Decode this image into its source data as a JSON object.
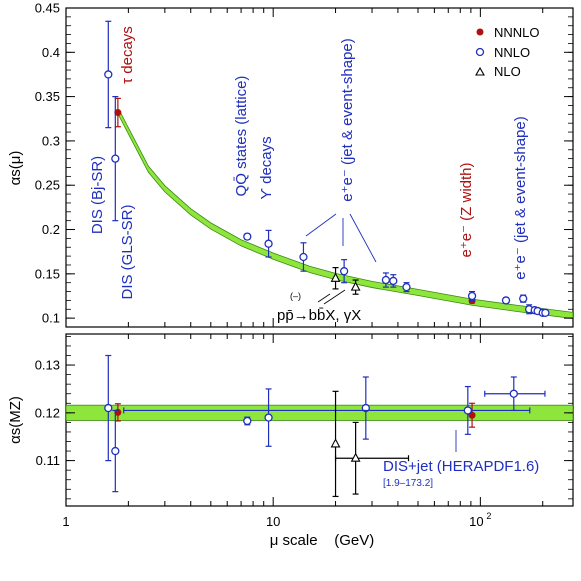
{
  "chart_data": [
    {
      "type": "scatter",
      "xlabel": "μ scale    (GeV)",
      "ylabel": "αs(μ)",
      "xscale": "log",
      "xlim": [
        1,
        280
      ],
      "ylim": [
        0.09,
        0.45
      ],
      "yticks": [
        "0.1",
        "0.15",
        "0.2",
        "0.25",
        "0.3",
        "0.35",
        "0.4",
        "0.45"
      ],
      "xticks": [
        "1",
        "10",
        "10^2"
      ],
      "legend": {
        "position": "top-right",
        "entries": [
          {
            "label": "NNNLO",
            "marker": "filled-circle",
            "color": "#b01010"
          },
          {
            "label": "NNLO",
            "marker": "open-circle",
            "color": "#1f2fbf"
          },
          {
            "label": "NLO",
            "marker": "open-triangle",
            "color": "#000000"
          }
        ]
      },
      "band": {
        "color": "#8ee63c",
        "x": [
          1.8,
          2.5,
          3,
          4,
          5,
          7,
          10,
          15,
          20,
          30,
          50,
          91.2,
          150,
          280
        ],
        "y": [
          0.332,
          0.268,
          0.246,
          0.22,
          0.204,
          0.185,
          0.17,
          0.155,
          0.147,
          0.138,
          0.129,
          0.118,
          0.111,
          0.103
        ]
      },
      "series": [
        {
          "name": "NNNLO",
          "points": [
            {
              "x": 1.78,
              "y": 0.332,
              "err": 0.016
            },
            {
              "x": 91.2,
              "y": 0.1196,
              "err": 0.0025
            }
          ]
        },
        {
          "name": "NNLO",
          "points": [
            {
              "x": 1.6,
              "y": 0.375,
              "err": 0.06
            },
            {
              "x": 1.73,
              "y": 0.28,
              "err": 0.07
            },
            {
              "x": 7.5,
              "y": 0.192,
              "err": 0.003
            },
            {
              "x": 9.5,
              "y": 0.184,
              "err": 0.015
            },
            {
              "x": 14,
              "y": 0.169,
              "err": 0.016
            },
            {
              "x": 22,
              "y": 0.153,
              "err": 0.013
            },
            {
              "x": 35,
              "y": 0.143,
              "err": 0.008
            },
            {
              "x": 38,
              "y": 0.142,
              "err": 0.007
            },
            {
              "x": 44,
              "y": 0.135,
              "err": 0.005
            },
            {
              "x": 91.2,
              "y": 0.125,
              "err": 0.005
            },
            {
              "x": 133,
              "y": 0.12,
              "err": 0.003
            },
            {
              "x": 161,
              "y": 0.122,
              "err": 0.004
            },
            {
              "x": 172,
              "y": 0.11,
              "err": 0.005
            },
            {
              "x": 183,
              "y": 0.109,
              "err": 0.003
            },
            {
              "x": 189,
              "y": 0.108,
              "err": 0.003
            },
            {
              "x": 200,
              "y": 0.106,
              "err": 0.003
            },
            {
              "x": 206,
              "y": 0.106,
              "err": 0.002
            }
          ]
        },
        {
          "name": "NLO",
          "points": [
            {
              "x": 20,
              "y": 0.145,
              "err": 0.012
            },
            {
              "x": 25,
              "y": 0.135,
              "err": 0.008
            }
          ]
        }
      ],
      "annotations": [
        {
          "text": "DIS (Bj-SR)",
          "color": "blue"
        },
        {
          "text": "DIS (GLS-SR)",
          "color": "blue"
        },
        {
          "text": "τ decays",
          "color": "red"
        },
        {
          "text": "QQ̄ states (lattice)",
          "color": "blue"
        },
        {
          "text": "ϒ decays",
          "color": "blue"
        },
        {
          "text": "e⁺e⁻ (jet & event-shape)",
          "color": "blue"
        },
        {
          "text": "e⁺e⁻ (Z width)",
          "color": "red"
        },
        {
          "text": "e⁺e⁻ (jet & event-shape)",
          "color": "blue"
        },
        {
          "text": "pp̄→bb̄X, γX",
          "color": "black"
        },
        {
          "text": "(–)",
          "color": "black"
        }
      ]
    },
    {
      "type": "scatter",
      "xlabel": "μ scale    (GeV)",
      "ylabel": "αs(MZ)",
      "xscale": "log",
      "xlim": [
        1,
        280
      ],
      "ylim": [
        0.1005,
        0.1365
      ],
      "yticks": [
        "0.11",
        "0.12",
        "0.13"
      ],
      "band": {
        "color": "#8ee63c",
        "y_low": 0.1184,
        "y_high": 0.1216
      },
      "series": [
        {
          "name": "NNNLO",
          "points": [
            {
              "x": 1.78,
              "y": 0.1201,
              "err": 0.0018
            },
            {
              "x": 91.2,
              "y": 0.1195,
              "err": 0.0025
            }
          ]
        },
        {
          "name": "NNLO",
          "points": [
            {
              "x": 1.6,
              "y": 0.121,
              "err": 0.011
            },
            {
              "x": 1.73,
              "y": 0.112,
              "err": 0.0085
            },
            {
              "x": 7.5,
              "y": 0.1183,
              "err": 0.0008
            },
            {
              "x": 9.5,
              "y": 0.119,
              "err": 0.006
            },
            {
              "x": 28,
              "y": 0.121,
              "err": 0.0065
            },
            {
              "x": 87,
              "y": 0.1205,
              "err": 0.005,
              "xerr": [
                1.9,
                173.2
              ]
            },
            {
              "x": 145,
              "y": 0.124,
              "err": 0.0035,
              "xerr": [
                105,
                205
              ]
            }
          ]
        },
        {
          "name": "NLO",
          "points": [
            {
              "x": 20,
              "y": 0.1135,
              "err": 0.011
            },
            {
              "x": 25,
              "y": 0.1105,
              "err": 0.0075,
              "xerr": [
                20,
                45
              ]
            }
          ]
        }
      ],
      "annotations": [
        {
          "text": "DIS+jet (HERAPDF1.6)",
          "color": "blue"
        },
        {
          "text": "[1.9–173.2]",
          "color": "blue"
        }
      ]
    }
  ]
}
